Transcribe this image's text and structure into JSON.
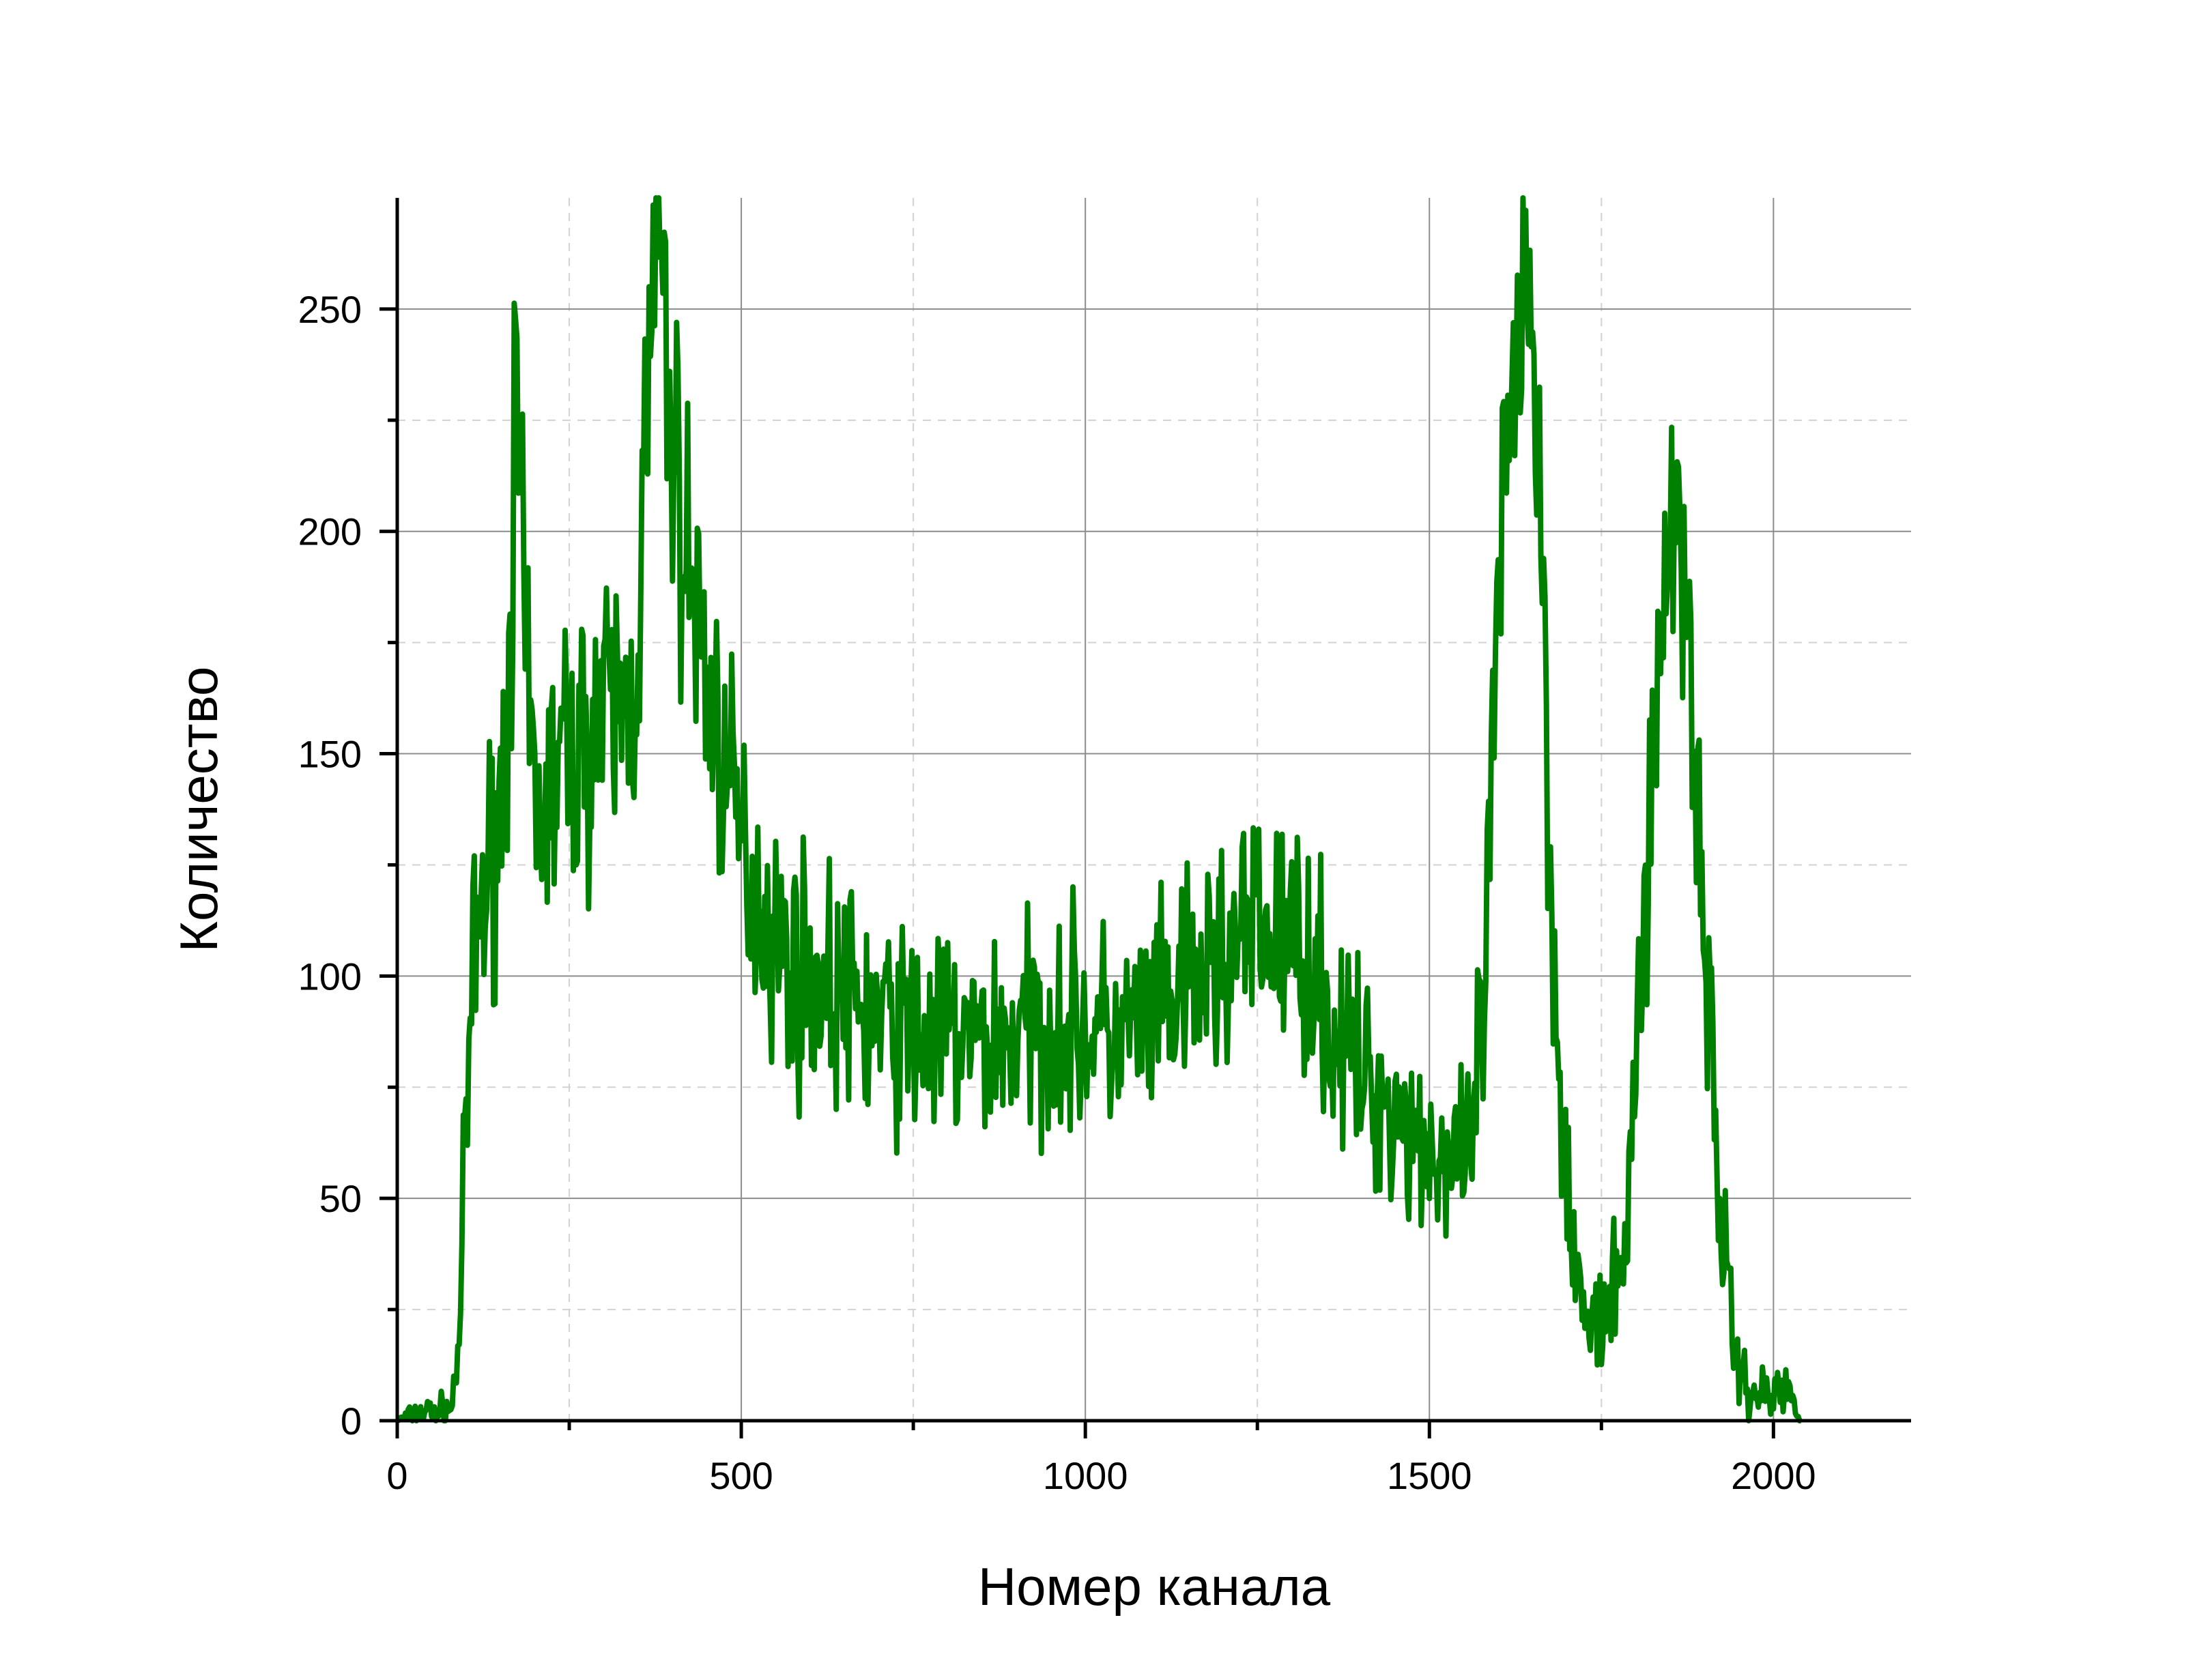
{
  "chart_data": {
    "type": "line",
    "xlabel": "Номер канала",
    "ylabel": "Количество",
    "xlim": [
      0,
      2200
    ],
    "ylim": [
      0,
      275
    ],
    "x_ticks": [
      0,
      500,
      1000,
      1500,
      2000
    ],
    "y_ticks": [
      0,
      50,
      100,
      150,
      200,
      250
    ],
    "x_tick_labels": [
      "0",
      "500",
      "1000",
      "1500",
      "2000"
    ],
    "y_tick_labels": [
      "0",
      "50",
      "100",
      "150",
      "200",
      "250"
    ],
    "x_minor_ticks": [
      250,
      750,
      1250,
      1750
    ],
    "y_minor_ticks": [
      25,
      75,
      125,
      175,
      225
    ],
    "grid": true,
    "line_color": "#008000",
    "noise_seed": 7,
    "series": [
      {
        "x": [
          0,
          20,
          40,
          60,
          80,
          90,
          100,
          110,
          120,
          130,
          140,
          150,
          160,
          170,
          175,
          180,
          190,
          200,
          210,
          220,
          230,
          240,
          250,
          260,
          270,
          280,
          300,
          320,
          340,
          350,
          360,
          370,
          380,
          390,
          400,
          410,
          420,
          430,
          440,
          450,
          460,
          470,
          480,
          490,
          500,
          510,
          520,
          540,
          560,
          580,
          600,
          650,
          700,
          750,
          800,
          850,
          900,
          950,
          1000,
          1050,
          1100,
          1150,
          1200,
          1250,
          1300,
          1340,
          1350,
          1370,
          1400,
          1450,
          1500,
          1540,
          1560,
          1580,
          1600,
          1620,
          1630,
          1640,
          1650,
          1660,
          1670,
          1680,
          1700,
          1720,
          1740,
          1760,
          1780,
          1800,
          1820,
          1840,
          1850,
          1860,
          1870,
          1880,
          1900,
          1920,
          1940,
          1960,
          1980,
          2000,
          2020,
          2030,
          2040
        ],
        "y": [
          0,
          1,
          2,
          2,
          3,
          20,
          65,
          100,
          115,
          120,
          130,
          140,
          160,
          215,
          225,
          190,
          160,
          140,
          135,
          140,
          145,
          150,
          150,
          148,
          152,
          155,
          158,
          160,
          162,
          175,
          215,
          245,
          270,
          240,
          220,
          205,
          195,
          185,
          178,
          165,
          160,
          150,
          142,
          135,
          130,
          125,
          120,
          112,
          105,
          102,
          100,
          95,
          90,
          87,
          86,
          85,
          87,
          90,
          88,
          86,
          90,
          96,
          105,
          110,
          108,
          100,
          90,
          85,
          78,
          70,
          62,
          54,
          60,
          95,
          180,
          230,
          250,
          270,
          245,
          210,
          160,
          105,
          55,
          25,
          20,
          22,
          35,
          75,
          140,
          180,
          200,
          205,
          195,
          170,
          110,
          55,
          18,
          8,
          6,
          6,
          7,
          4,
          0
        ]
      }
    ]
  }
}
